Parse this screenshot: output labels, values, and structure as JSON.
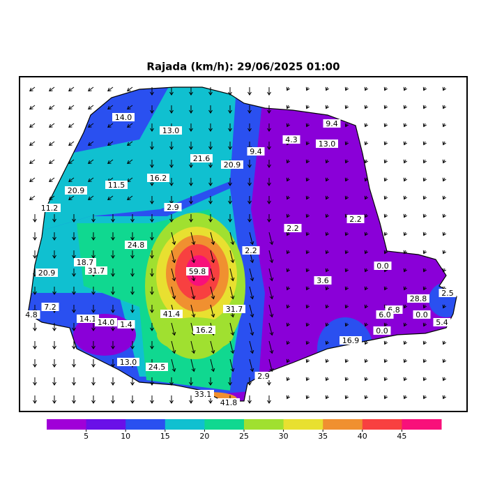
{
  "map": {
    "title": "Rajada (km/h): 29/06/2025 01:00",
    "stations": [
      "14.0",
      "13.0",
      "9.4",
      "4.3",
      "13.0",
      "9.4",
      "21.6",
      "20.9",
      "16.2",
      "11.5",
      "20.9",
      "11.2",
      "2.9",
      "2.2",
      "2.2",
      "24.8",
      "2.2",
      "18.7",
      "31.7",
      "59.8",
      "0.0",
      "20.9",
      "3.6",
      "2.5",
      "28.8",
      "7.2",
      "4.8",
      "41.4",
      "31.7",
      "6.8",
      "6.0",
      "0.0",
      "5.4",
      "14.1",
      "14.0",
      "1.4",
      "16.2",
      "0.0",
      "16.9",
      "13.0",
      "24.5",
      "2.9",
      "33.1",
      "41.8"
    ],
    "colorbar": {
      "ticks": [
        5,
        10,
        15,
        20,
        25,
        30,
        35,
        40,
        45
      ],
      "colors": [
        "#a000d8",
        "#6a10e8",
        "#2a50f0",
        "#10c0d0",
        "#10d890",
        "#a0e030",
        "#e8e030",
        "#f09030",
        "#f84040",
        "#f8107a"
      ]
    }
  }
}
